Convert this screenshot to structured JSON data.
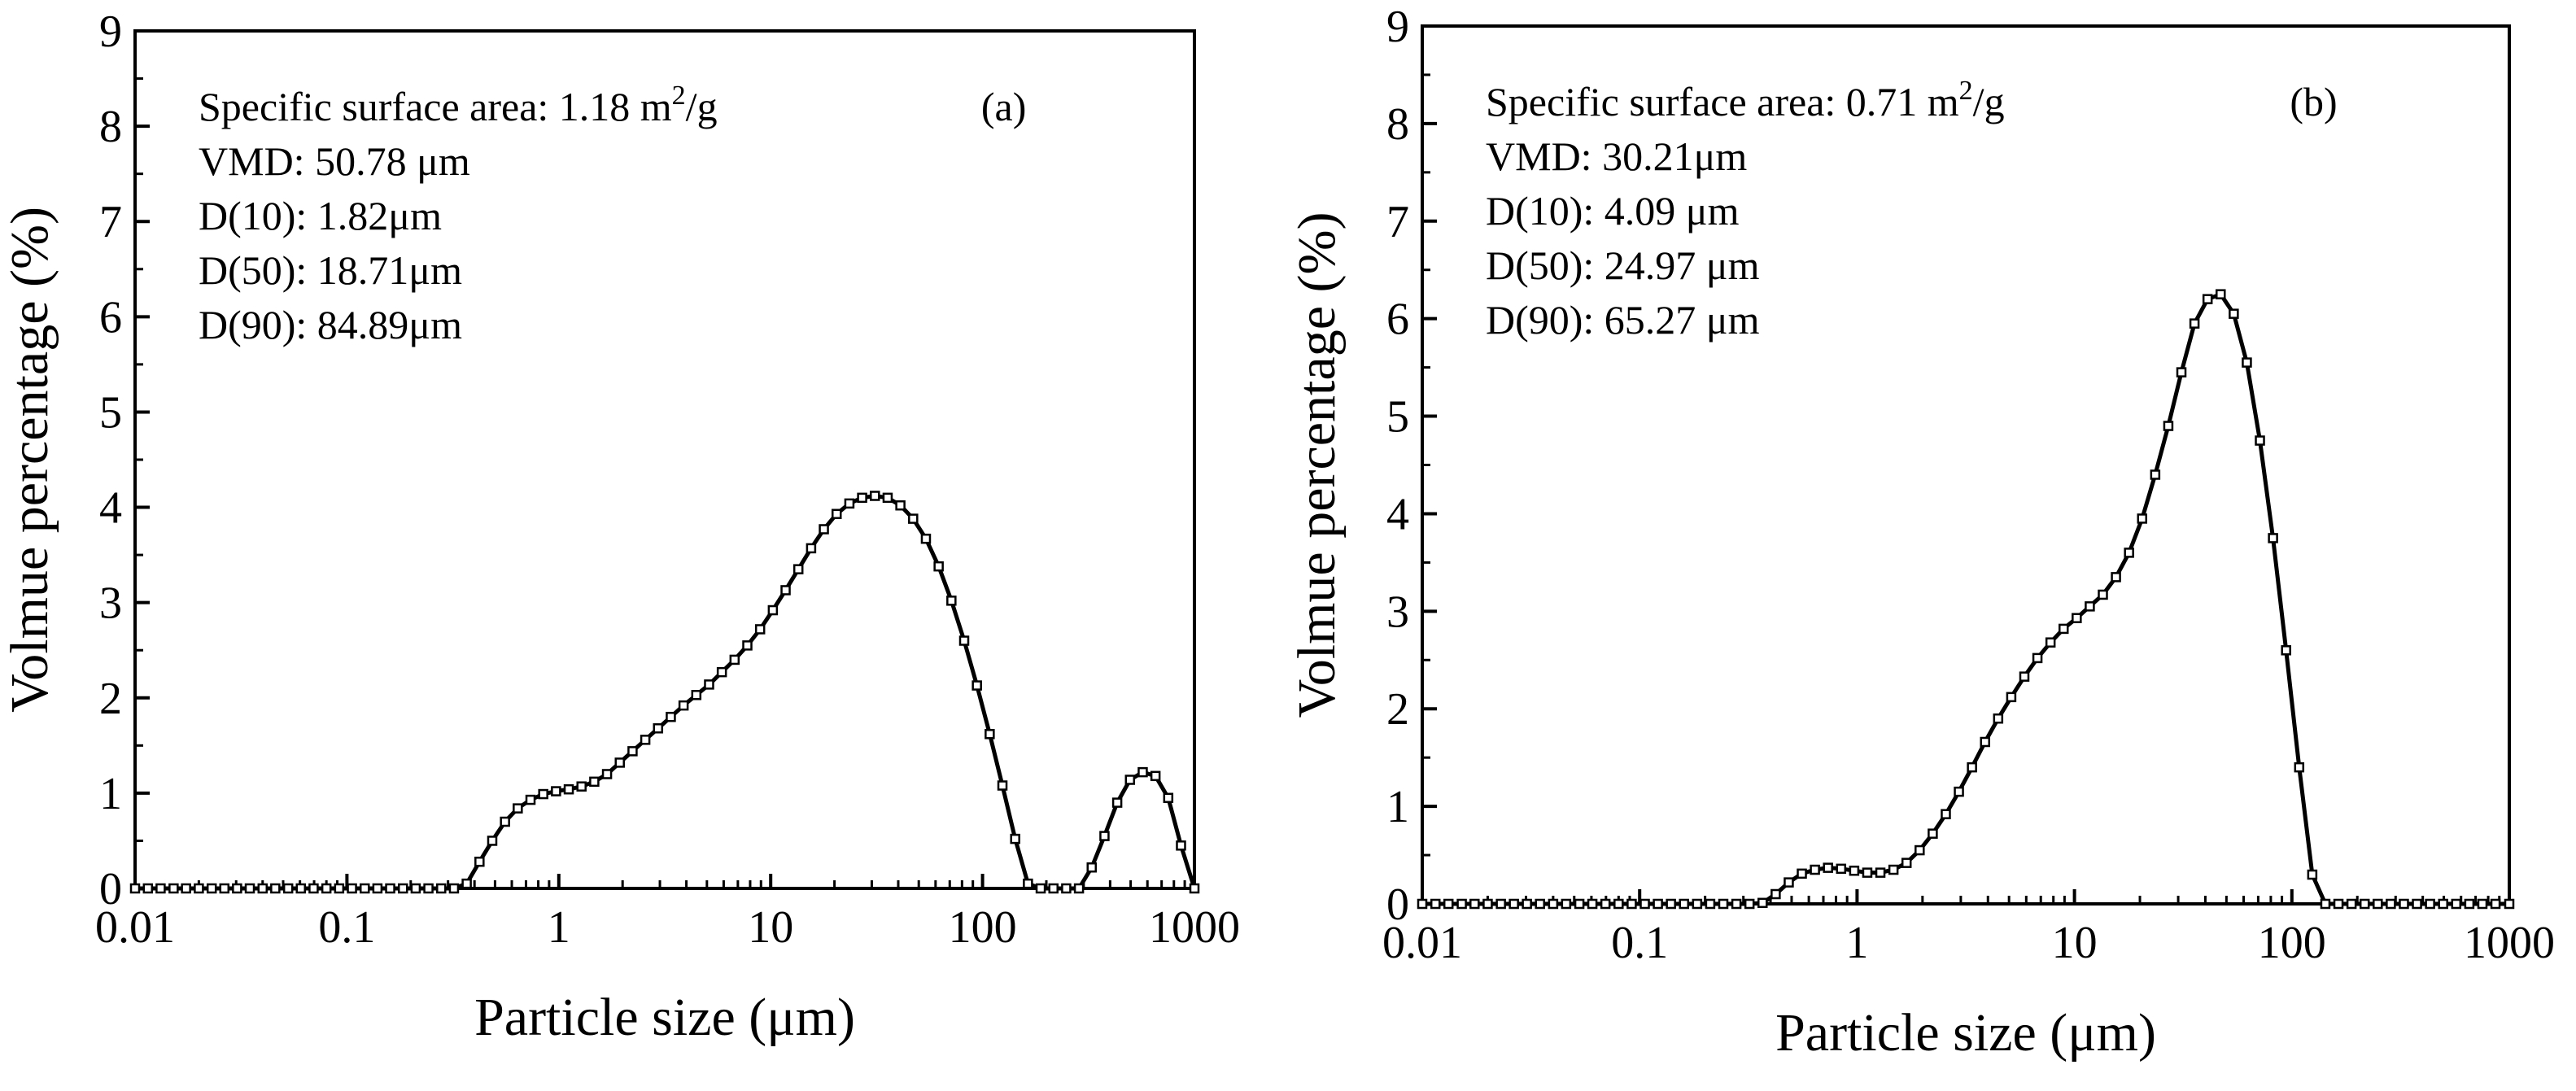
{
  "chart_data": [
    {
      "type": "line",
      "panel_label": "(a)",
      "xscale": "log",
      "xlabel": "Particle size (μm)",
      "ylabel": "Volmue percentage (%)",
      "xlim": [
        0.01,
        1000
      ],
      "ylim": [
        0,
        9
      ],
      "x_ticks": [
        0.01,
        0.1,
        1,
        10,
        100,
        1000
      ],
      "x_tick_labels": [
        "0.01",
        "0.1",
        "1",
        "10",
        "100",
        "1000"
      ],
      "y_ticks": [
        0,
        1,
        2,
        3,
        4,
        5,
        6,
        7,
        8,
        9
      ],
      "y_tick_labels": [
        "0",
        "1",
        "2",
        "3",
        "4",
        "5",
        "6",
        "7",
        "8",
        "9"
      ],
      "grid": false,
      "marker": "open-square",
      "annotations": {
        "ssa_text": "Specific surface area: 1.18 m",
        "ssa_sup": "2",
        "ssa_unit": "/g",
        "vmd": "VMD: 50.78 μm",
        "d10": "D(10): 1.82μm",
        "d50": "D(50): 18.71μm",
        "d90": "D(90): 84.89μm"
      },
      "series": [
        {
          "name": "Volume percentage",
          "x": [
            0.01,
            0.0115,
            0.0132,
            0.0152,
            0.0174,
            0.02,
            0.023,
            0.0264,
            0.0303,
            0.0348,
            0.04,
            0.0459,
            0.0528,
            0.0606,
            0.0696,
            0.08,
            0.0919,
            0.1056,
            0.1213,
            0.1393,
            0.16,
            0.1838,
            0.2111,
            0.2425,
            0.2786,
            0.32,
            0.3676,
            0.4223,
            0.4851,
            0.5572,
            0.64,
            0.7352,
            0.8445,
            0.9701,
            1.1143,
            1.28,
            1.4703,
            1.6889,
            1.94,
            2.2285,
            2.5599,
            2.9405,
            3.3777,
            3.8799,
            4.4568,
            5.1195,
            5.8807,
            6.7551,
            7.7594,
            8.9131,
            10.2383,
            11.7606,
            13.509,
            15.5177,
            17.8249,
            20.4751,
            23.5196,
            27.0168,
            31.0335,
            35.6475,
            40.9477,
            47.0357,
            54.0286,
            62.0621,
            71.2893,
            81.8883,
            94.0635,
            108.049,
            124.114,
            142.567,
            163.763,
            188.11,
            216.079,
            248.206,
            285.105,
            327.495,
            376.186,
            432.115,
            496.362,
            570.162,
            654.932,
            752.305,
            864.158,
            1000
          ],
          "y": [
            0,
            0,
            0,
            0,
            0,
            0,
            0,
            0,
            0,
            0,
            0,
            0,
            0,
            0,
            0,
            0,
            0,
            0,
            0,
            0,
            0,
            0,
            0,
            0,
            0,
            0,
            0.05,
            0.28,
            0.5,
            0.7,
            0.84,
            0.93,
            0.99,
            1.02,
            1.04,
            1.07,
            1.12,
            1.2,
            1.32,
            1.44,
            1.56,
            1.68,
            1.8,
            1.92,
            2.03,
            2.14,
            2.27,
            2.4,
            2.55,
            2.72,
            2.92,
            3.13,
            3.35,
            3.57,
            3.77,
            3.93,
            4.04,
            4.1,
            4.12,
            4.1,
            4.02,
            3.88,
            3.67,
            3.38,
            3.02,
            2.6,
            2.13,
            1.62,
            1.08,
            0.52,
            0.05,
            0,
            0,
            0,
            0,
            0.22,
            0.55,
            0.9,
            1.14,
            1.22,
            1.18,
            0.95,
            0.45,
            0
          ]
        }
      ]
    },
    {
      "type": "line",
      "panel_label": "(b)",
      "xscale": "log",
      "xlabel": "Particle size (μm)",
      "ylabel": "Volmue percentage (%)",
      "xlim": [
        0.01,
        1000
      ],
      "ylim": [
        0,
        9
      ],
      "x_ticks": [
        0.01,
        0.1,
        1,
        10,
        100,
        1000
      ],
      "x_tick_labels": [
        "0.01",
        "0.1",
        "1",
        "10",
        "100",
        "1000"
      ],
      "y_ticks": [
        0,
        1,
        2,
        3,
        4,
        5,
        6,
        7,
        8,
        9
      ],
      "y_tick_labels": [
        "0",
        "1",
        "2",
        "3",
        "4",
        "5",
        "6",
        "7",
        "8",
        "9"
      ],
      "grid": false,
      "marker": "open-square",
      "annotations": {
        "ssa_text": "Specific surface area: 0.71 m",
        "ssa_sup": "2",
        "ssa_unit": "/g",
        "vmd": "VMD: 30.21μm",
        "d10": "D(10): 4.09 μm",
        "d50": "D(50): 24.97 μm",
        "d90": "D(90): 65.27 μm"
      },
      "series": [
        {
          "name": "Volume percentage",
          "x": [
            0.01,
            0.0115,
            0.0132,
            0.0152,
            0.0174,
            0.02,
            0.023,
            0.0264,
            0.0303,
            0.0348,
            0.04,
            0.0459,
            0.0528,
            0.0606,
            0.0696,
            0.08,
            0.0919,
            0.1056,
            0.1213,
            0.1393,
            0.16,
            0.1838,
            0.2111,
            0.2425,
            0.2786,
            0.32,
            0.3676,
            0.4223,
            0.4851,
            0.5572,
            0.64,
            0.7352,
            0.8445,
            0.9701,
            1.1143,
            1.28,
            1.4703,
            1.6889,
            1.94,
            2.2285,
            2.5599,
            2.9405,
            3.3777,
            3.8799,
            4.4568,
            5.1195,
            5.8807,
            6.7551,
            7.7594,
            8.9131,
            10.2383,
            11.7606,
            13.509,
            15.5177,
            17.8249,
            20.4751,
            23.5196,
            27.0168,
            31.0335,
            35.6475,
            40.9477,
            47.0357,
            54.0286,
            62.0621,
            71.2893,
            81.8883,
            94.0635,
            108.049,
            124.114,
            142.567,
            163.763,
            188.11,
            216.079,
            248.206,
            285.105,
            327.495,
            376.186,
            432.115,
            496.362,
            570.162,
            654.932,
            752.305,
            864.158,
            1000
          ],
          "y": [
            0,
            0,
            0,
            0,
            0,
            0,
            0,
            0,
            0,
            0,
            0,
            0,
            0,
            0,
            0,
            0,
            0,
            0,
            0,
            0,
            0,
            0,
            0,
            0,
            0,
            0,
            0.01,
            0.1,
            0.22,
            0.31,
            0.35,
            0.37,
            0.36,
            0.34,
            0.32,
            0.32,
            0.35,
            0.42,
            0.55,
            0.72,
            0.92,
            1.15,
            1.4,
            1.66,
            1.9,
            2.12,
            2.33,
            2.52,
            2.68,
            2.82,
            2.93,
            3.05,
            3.17,
            3.35,
            3.6,
            3.95,
            4.4,
            4.9,
            5.45,
            5.95,
            6.2,
            6.25,
            6.05,
            5.55,
            4.75,
            3.75,
            2.6,
            1.4,
            0.3,
            0,
            0,
            0,
            0,
            0,
            0,
            0,
            0,
            0,
            0,
            0,
            0,
            0,
            0,
            0
          ]
        }
      ]
    }
  ]
}
